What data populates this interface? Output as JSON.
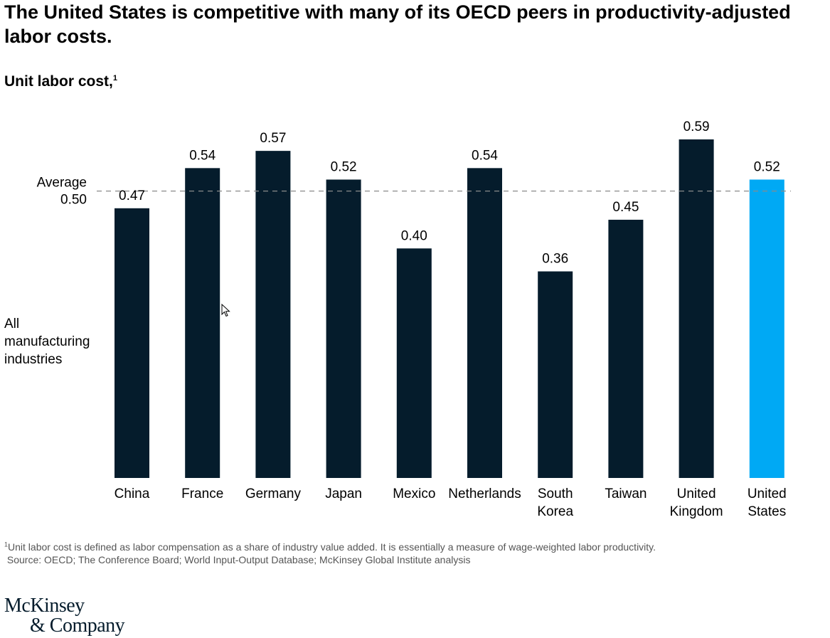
{
  "title": "The United States is competitive with many of its OECD peers in productivity-adjusted labor costs.",
  "subtitle": "Unit labor cost,",
  "subtitle_sup": "1",
  "chart_data": {
    "type": "bar",
    "categories": [
      [
        "China"
      ],
      [
        "France"
      ],
      [
        "Germany"
      ],
      [
        "Japan"
      ],
      [
        "Mexico"
      ],
      [
        "Netherlands"
      ],
      [
        "South",
        "Korea"
      ],
      [
        "Taiwan"
      ],
      [
        "United",
        "Kingdom"
      ],
      [
        "United",
        "States"
      ]
    ],
    "values": [
      0.47,
      0.54,
      0.57,
      0.52,
      0.4,
      0.54,
      0.36,
      0.45,
      0.59,
      0.52
    ],
    "value_labels": [
      "0.47",
      "0.54",
      "0.57",
      "0.52",
      "0.40",
      "0.54",
      "0.36",
      "0.45",
      "0.59",
      "0.52"
    ],
    "highlight_index": 9,
    "average": {
      "value": 0.5,
      "label_line1": "Average",
      "label_line2": "0.50"
    },
    "row_label": [
      "All",
      "manufacturing",
      "industries"
    ],
    "ylim": [
      0,
      0.59
    ],
    "grid": false,
    "colors": {
      "bar": "#051c2c",
      "highlight": "#00a9f4",
      "average_line": "#8a8a8a",
      "text": "#000000"
    }
  },
  "footnote": {
    "sup": "1",
    "line1": "Unit labor cost is defined as labor compensation as a share of industry value added. It is essentially a measure of wage-weighted labor productivity.",
    "line2": "Source: OECD; The Conference Board; World Input-Output Database; McKinsey Global Institute analysis"
  },
  "logo": {
    "line1": "McKinsey",
    "line2": "& Company"
  },
  "cursor_icon": "mouse-pointer-icon"
}
